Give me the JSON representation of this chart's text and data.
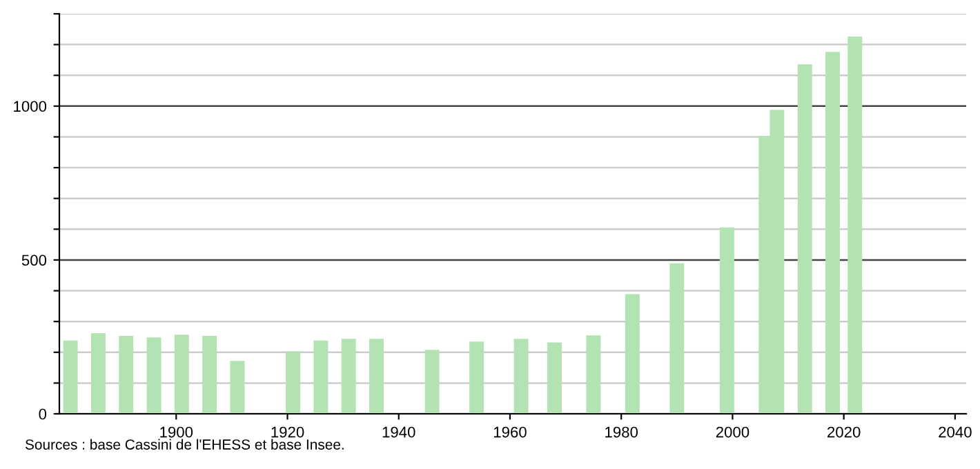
{
  "chart_data": {
    "type": "bar",
    "x": [
      1881,
      1886,
      1891,
      1896,
      1901,
      1906,
      1911,
      1921,
      1926,
      1931,
      1936,
      1946,
      1954,
      1962,
      1968,
      1975,
      1982,
      1990,
      1999,
      2006,
      2008,
      2013,
      2018,
      2022
    ],
    "series": [
      {
        "color": "#b3e3b3",
        "values": [
          238,
          262,
          253,
          248,
          257,
          253,
          172,
          203,
          238,
          244,
          244,
          208,
          235,
          244,
          232,
          255,
          389,
          489,
          606,
          903,
          988,
          1136,
          1176,
          1226
        ]
      }
    ],
    "xlim": [
      1879,
      2042
    ],
    "xticks": [
      1900,
      1920,
      1940,
      1960,
      1980,
      2000,
      2020,
      2040
    ],
    "ylim": [
      0,
      1300
    ],
    "yticks": [
      0,
      {
        "value": 100,
        "label": null
      },
      {
        "value": 200,
        "label": null
      },
      {
        "value": 300,
        "label": null
      },
      {
        "value": 400,
        "label": null
      },
      500,
      {
        "value": 600,
        "label": null
      },
      {
        "value": 700,
        "label": null
      },
      {
        "value": 800,
        "label": null
      },
      {
        "value": 900,
        "label": null
      },
      1000,
      {
        "value": 1100,
        "label": null
      },
      {
        "value": 1200,
        "label": null
      },
      {
        "value": 1300,
        "label": null
      }
    ],
    "grid": "y",
    "annotations": [
      "Sources : base Cassini de l'EHESS et base Insee."
    ]
  }
}
